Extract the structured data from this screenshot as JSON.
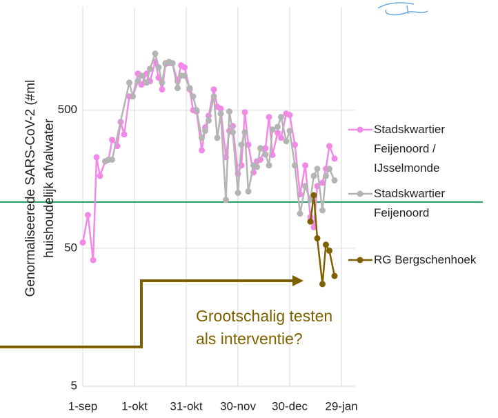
{
  "chart_data": {
    "type": "line",
    "ylabel": "Genormaliseerede SARS-CoV-2 (#ml huishoudelijk afvalwater",
    "annotation": "Grootschalig testen als interventie?",
    "log_y": true,
    "grid": true,
    "legend": "right",
    "ylim": [
      5,
      2800
    ],
    "yticks": [
      5,
      50,
      500
    ],
    "xlim": [
      "09-01",
      "02-06"
    ],
    "xticks": [
      {
        "value": "09-01",
        "label": "1-sep"
      },
      {
        "value": "10-01",
        "label": "1-okt"
      },
      {
        "value": "10-31",
        "label": "31-okt"
      },
      {
        "value": "11-30",
        "label": "30-nov"
      },
      {
        "value": "12-30",
        "label": "30-dec"
      },
      {
        "value": "01-29",
        "label": "29-jan"
      }
    ],
    "reference_line": {
      "value": 108,
      "color": "#1a9a5a"
    },
    "series": [
      {
        "name": "Stadskwartier Feijenoord / IJsselmonde",
        "color": "#f08ae6",
        "x": [
          "09-01",
          "09-04",
          "09-07",
          "09-09",
          "09-11",
          "09-14",
          "09-16",
          "09-18",
          "09-21",
          "09-23",
          "09-25",
          "09-28",
          "09-30",
          "10-03",
          "10-05",
          "10-08",
          "10-10",
          "10-13",
          "10-15",
          "10-17",
          "10-19",
          "10-21",
          "10-23",
          "10-26",
          "10-28",
          "10-30",
          "11-02",
          "11-04",
          "11-06",
          "11-09",
          "11-11",
          "11-13",
          "11-16",
          "11-18",
          "11-20",
          "11-23",
          "11-25",
          "11-27",
          "11-30",
          "12-02",
          "12-04",
          "12-06",
          "12-09",
          "12-11",
          "12-13",
          "12-16",
          "12-18",
          "12-20",
          "12-23",
          "12-25",
          "12-28",
          "12-30",
          "01-02",
          "01-05",
          "01-08",
          "01-11",
          "01-13",
          "01-15",
          "01-18",
          "01-20",
          "01-22",
          "01-25"
        ],
        "values": [
          55,
          87,
          41,
          228,
          167,
          213,
          219,
          305,
          275,
          411,
          334,
          629,
          629,
          920,
          766,
          920,
          811,
          1120,
          859,
          706,
          1082,
          1094,
          1094,
          811,
          1057,
          1021,
          706,
          500,
          489,
          256,
          375,
          456,
          706,
          530,
          512,
          228,
          354,
          384,
          173,
          199,
          483,
          281,
          177,
          213,
          219,
          265,
          446,
          237,
          342,
          315,
          472,
          461,
          281,
          123,
          199,
          84,
          71,
          141,
          149,
          188,
          275,
          223
        ]
      },
      {
        "name": "Stadskwartier Feijenoord",
        "color": "#b4b4b4",
        "x": [
          "09-14",
          "09-16",
          "09-18",
          "09-28",
          "09-30",
          "10-03",
          "10-05",
          "10-08",
          "10-10",
          "10-13",
          "10-15",
          "10-17",
          "10-19",
          "10-21",
          "10-23",
          "10-26",
          "10-28",
          "10-30",
          "11-02",
          "11-04",
          "11-06",
          "11-09",
          "11-11",
          "11-13",
          "11-16",
          "11-18",
          "11-20",
          "11-23",
          "11-25",
          "11-27",
          "11-30",
          "12-02",
          "12-04",
          "12-06",
          "12-09",
          "12-11",
          "12-13",
          "12-16",
          "12-18",
          "12-20",
          "12-23",
          "12-25",
          "12-28",
          "12-30",
          "01-02",
          "01-05",
          "01-08",
          "01-11",
          "01-13",
          "01-15",
          "01-18",
          "01-20",
          "01-22",
          "01-25"
        ],
        "values": [
          213,
          219,
          219,
          792,
          629,
          811,
          889,
          792,
          998,
          1285,
          1021,
          792,
          1094,
          1120,
          1094,
          723,
          889,
          889,
          723,
          629,
          500,
          315,
          354,
          421,
          629,
          315,
          472,
          112,
          489,
          346,
          126,
          281,
          346,
          129,
          199,
          194,
          265,
          239,
          199,
          362,
          379,
          446,
          298,
          354,
          199,
          89,
          141,
          112,
          167,
          188,
          94,
          167,
          188,
          155
        ]
      },
      {
        "name": "RG Bergschenhoek",
        "color": "#7f6000",
        "x": [
          "01-11",
          "01-13",
          "01-15",
          "01-18",
          "01-20",
          "01-22",
          "01-25"
        ],
        "values": [
          78,
          121,
          59,
          27.5,
          53,
          48,
          31.5
        ]
      }
    ]
  }
}
